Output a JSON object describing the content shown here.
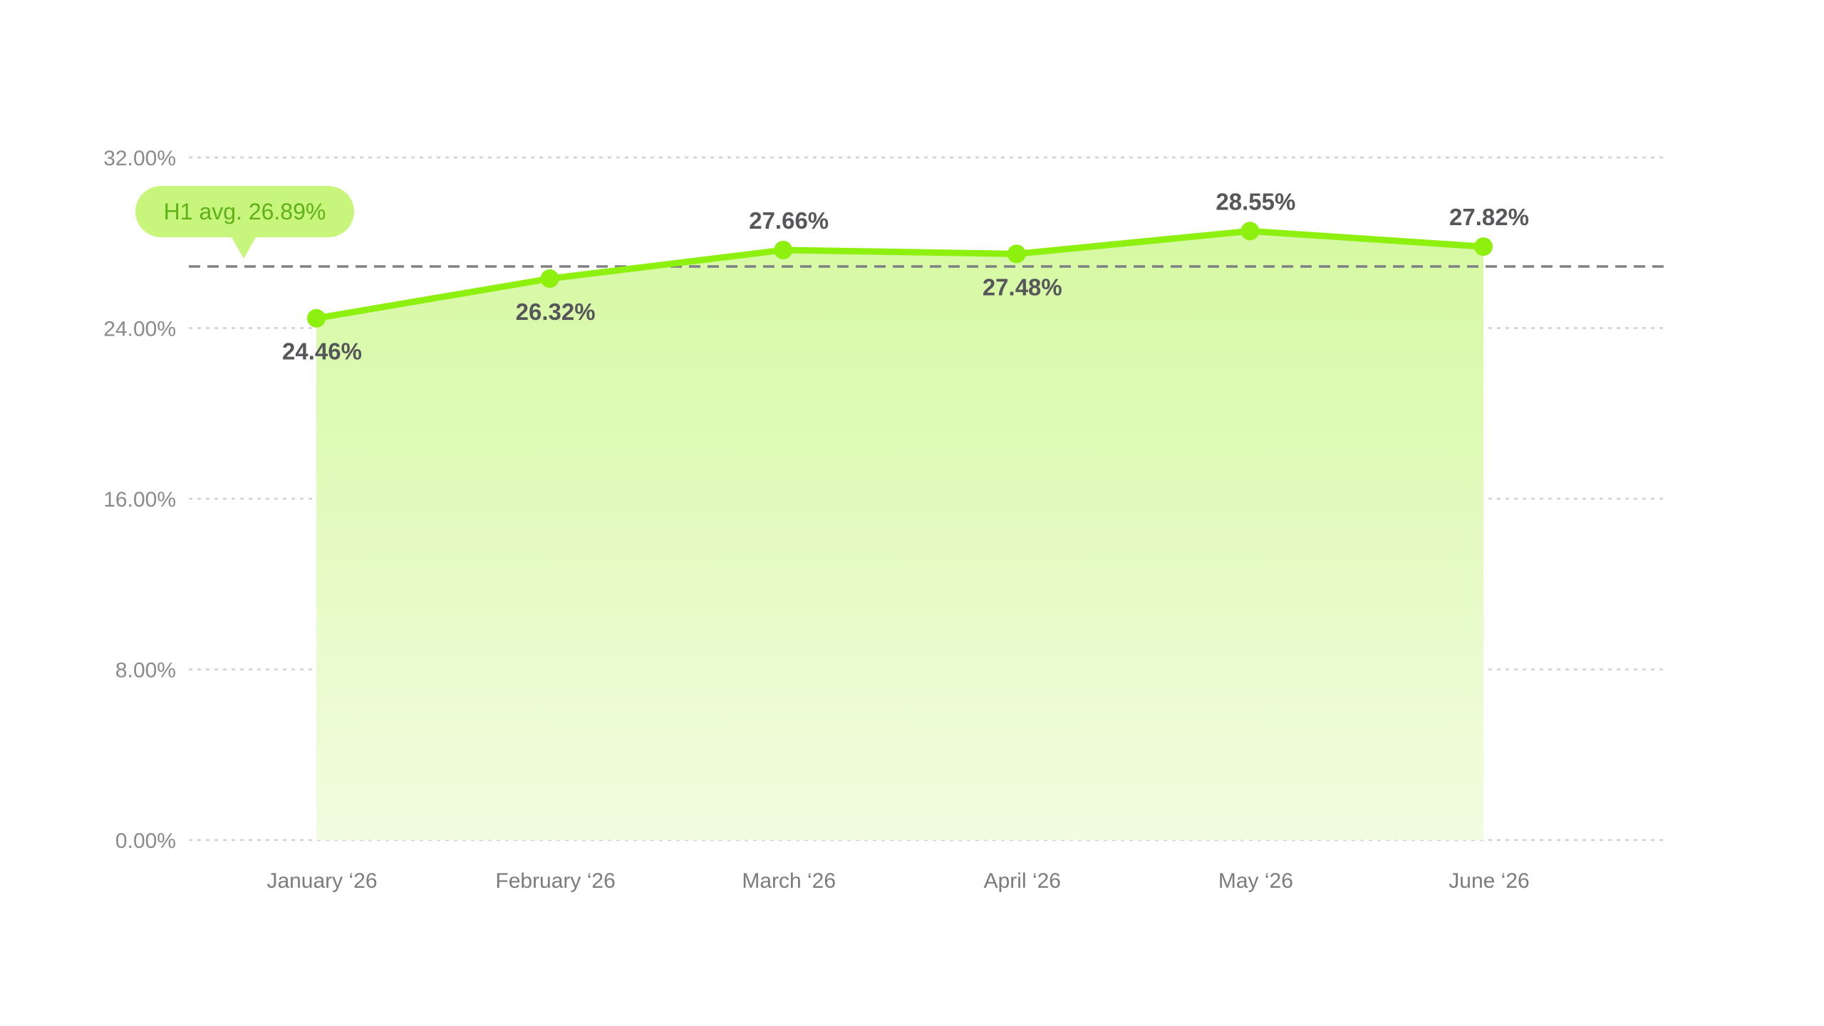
{
  "chart_data": {
    "type": "area",
    "categories": [
      "January ‘26",
      "February ‘26",
      "March ‘26",
      "April ‘26",
      "May ‘26",
      "June ‘26"
    ],
    "values": [
      24.46,
      26.32,
      27.66,
      27.48,
      28.55,
      27.82
    ],
    "data_labels": [
      "24.46%",
      "26.32%",
      "27.66%",
      "27.48%",
      "28.55%",
      "27.82%"
    ],
    "y_ticks": [
      0,
      8,
      16,
      24,
      32
    ],
    "y_tick_labels": [
      "0.00%",
      "8.00%",
      "16.00%",
      "24.00%",
      "32.00%"
    ],
    "ylim": [
      0,
      32
    ],
    "grid": true,
    "reference_line": {
      "value": 26.89,
      "label": "H1 avg. 26.89%"
    },
    "colors": {
      "line": "#8df00f",
      "area_top": "#d6f9a2",
      "area_bottom": "#f2fce0",
      "badge": "#c8f67c",
      "badge_text": "#5fb11a",
      "reference_line": "#7f8083",
      "grid": "#cfcfd4"
    }
  }
}
